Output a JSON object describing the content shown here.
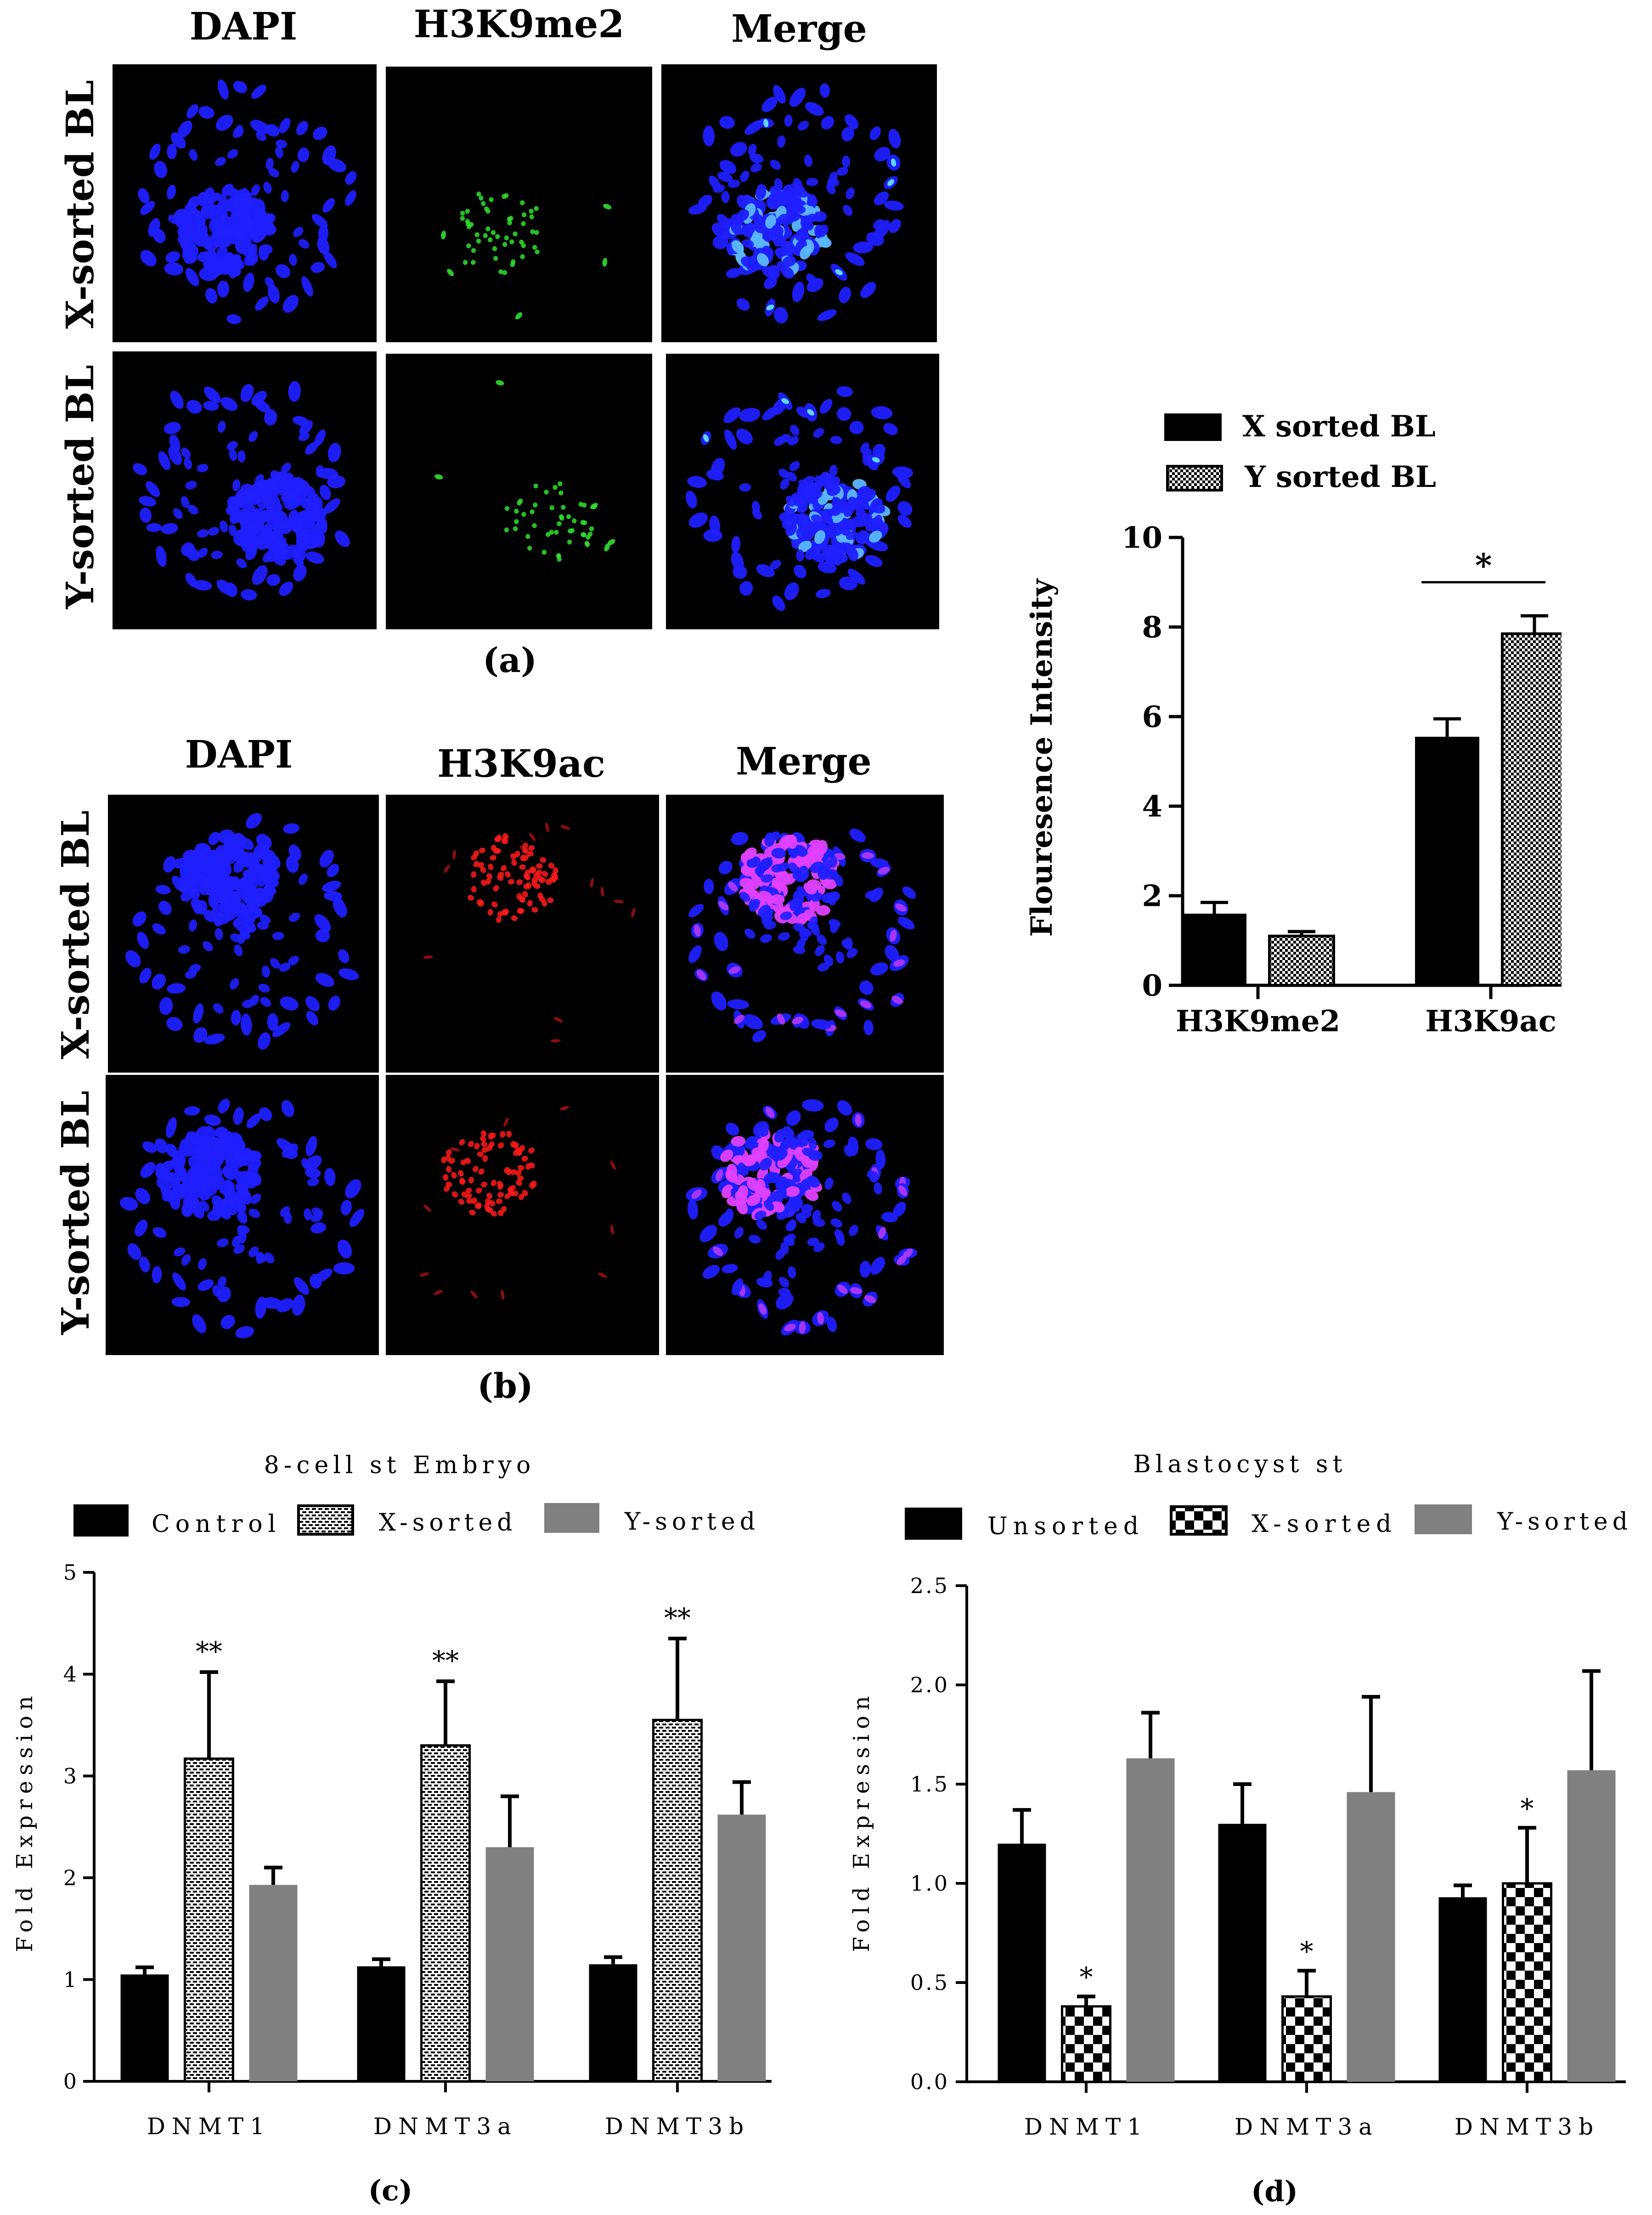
{
  "panel_a": {
    "label": "(a)",
    "columns": [
      "DAPI",
      "H3K9me2",
      "Merge"
    ],
    "rows": [
      "X-sorted BL",
      "Y-sorted BL"
    ]
  },
  "panel_b": {
    "label": "(b)",
    "columns": [
      "DAPI",
      "H3K9ac",
      "Merge"
    ],
    "rows": [
      "X-sorted BL",
      "Y-sorted BL"
    ]
  },
  "panel_c_label": "(c)",
  "panel_d_label": "(d)",
  "colors": {
    "dapi": "#1f1fff",
    "h3k9me2": "#2ee02e",
    "h3k9ac": "#ff1a1a",
    "merge_ac": "#e040ff",
    "black_bar": "#000000",
    "gray_bar": "#808080"
  },
  "chart_data": [
    {
      "type": "bar",
      "title": "",
      "xlabel": "",
      "ylabel": "Flouresence Intensity",
      "categories": [
        "H3K9me2",
        "H3K9ac"
      ],
      "series": [
        {
          "name": "X sorted BL",
          "values": [
            1.6,
            5.55
          ],
          "errors": [
            0.25,
            0.4
          ],
          "pattern": "solid"
        },
        {
          "name": "Y sorted BL",
          "values": [
            1.1,
            7.85
          ],
          "errors": [
            0.1,
            0.4
          ],
          "pattern": "checker"
        }
      ],
      "ylim": [
        0,
        10
      ],
      "yticks": [
        "0",
        "2",
        "4",
        "6",
        "8",
        "10"
      ],
      "significance": "*",
      "legend": "top"
    },
    {
      "type": "bar",
      "title": "8-cell st Embryo",
      "xlabel": "",
      "ylabel": "Fold Expression",
      "categories": [
        "DNMT1",
        "DNMT3a",
        "DNMT3b"
      ],
      "series": [
        {
          "name": "Control",
          "values": [
            1.05,
            1.13,
            1.15
          ],
          "errors": [
            0.07,
            0.07,
            0.07
          ],
          "pattern": "solid"
        },
        {
          "name": "X-sorted",
          "values": [
            3.17,
            3.3,
            3.55
          ],
          "errors": [
            0.85,
            0.63,
            0.8
          ],
          "pattern": "dots"
        },
        {
          "name": "Y-sorted",
          "values": [
            1.93,
            2.3,
            2.62
          ],
          "errors": [
            0.17,
            0.5,
            0.32
          ],
          "pattern": "gray"
        }
      ],
      "significance": [
        "**",
        "**",
        "**"
      ],
      "ylim": [
        0,
        5
      ],
      "yticks": [
        "0",
        "1",
        "2",
        "3",
        "4",
        "5"
      ],
      "legend": "top"
    },
    {
      "type": "bar",
      "title": "Blastocyst st",
      "xlabel": "",
      "ylabel": "Fold Expression",
      "categories": [
        "DNMT1",
        "DNMT3a",
        "DNMT3b"
      ],
      "series": [
        {
          "name": "Unsorted",
          "values": [
            1.2,
            1.3,
            0.93
          ],
          "errors": [
            0.17,
            0.2,
            0.06
          ],
          "pattern": "solid"
        },
        {
          "name": "X-sorted",
          "values": [
            0.38,
            0.43,
            1.0
          ],
          "errors": [
            0.05,
            0.13,
            0.28
          ],
          "pattern": "checker"
        },
        {
          "name": "Y-sorted",
          "values": [
            1.63,
            1.46,
            1.57
          ],
          "errors": [
            0.23,
            0.48,
            0.5
          ],
          "pattern": "gray"
        }
      ],
      "significance": [
        "*",
        "*",
        "*"
      ],
      "ylim": [
        0,
        2.5
      ],
      "yticks": [
        "0.0",
        "0.5",
        "1.0",
        "1.5",
        "2.0",
        "2.5"
      ],
      "legend": "top"
    }
  ]
}
